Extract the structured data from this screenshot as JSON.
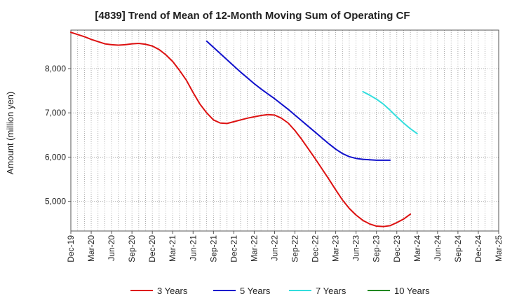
{
  "chart_data": {
    "type": "line",
    "title": "[4839]  Trend of Mean of 12-Month Moving Sum of Operating CF",
    "xlabel": "",
    "ylabel": "Amount (million yen)",
    "ylim": [
      4330,
      8870
    ],
    "yticks": [
      5000,
      6000,
      7000,
      8000
    ],
    "ytick_labels": [
      "5,000",
      "6,000",
      "7,000",
      "8,000"
    ],
    "grid": true,
    "legend_position": "bottom",
    "x_start": "Dec-19",
    "x_end": "Mar-25",
    "x_tick_labels": [
      "Dec-19",
      "Mar-20",
      "Jun-20",
      "Sep-20",
      "Dec-20",
      "Mar-21",
      "Jun-21",
      "Sep-21",
      "Dec-21",
      "Mar-22",
      "Jun-22",
      "Sep-22",
      "Dec-22",
      "Mar-23",
      "Jun-23",
      "Sep-23",
      "Dec-23",
      "Mar-24",
      "Jun-24",
      "Sep-24",
      "Dec-24",
      "Mar-25"
    ],
    "series": [
      {
        "name": "3 Years",
        "color": "#dd1111",
        "start_index": 0,
        "values": [
          8820,
          8770,
          8720,
          8660,
          8610,
          8560,
          8540,
          8530,
          8540,
          8560,
          8570,
          8550,
          8510,
          8430,
          8310,
          8160,
          7960,
          7740,
          7460,
          7200,
          7000,
          6840,
          6770,
          6760,
          6800,
          6840,
          6880,
          6910,
          6940,
          6960,
          6950,
          6880,
          6770,
          6600,
          6400,
          6180,
          5960,
          5730,
          5500,
          5260,
          5030,
          4840,
          4690,
          4570,
          4490,
          4440,
          4430,
          4450,
          4520,
          4600,
          4710
        ]
      },
      {
        "name": "5 Years",
        "color": "#1111cc",
        "start_index": 20,
        "values": [
          8620,
          8480,
          8340,
          8200,
          8060,
          7920,
          7790,
          7660,
          7540,
          7430,
          7320,
          7200,
          7080,
          6950,
          6820,
          6690,
          6560,
          6430,
          6300,
          6180,
          6080,
          6010,
          5970,
          5950,
          5940,
          5930,
          5930,
          5930
        ]
      },
      {
        "name": "7 Years",
        "color": "#33dddd",
        "start_index": 43,
        "values": [
          7480,
          7400,
          7310,
          7200,
          7060,
          6910,
          6770,
          6640,
          6530
        ]
      },
      {
        "name": "10 Years",
        "color": "#228822",
        "start_index": 0,
        "values": []
      }
    ]
  }
}
